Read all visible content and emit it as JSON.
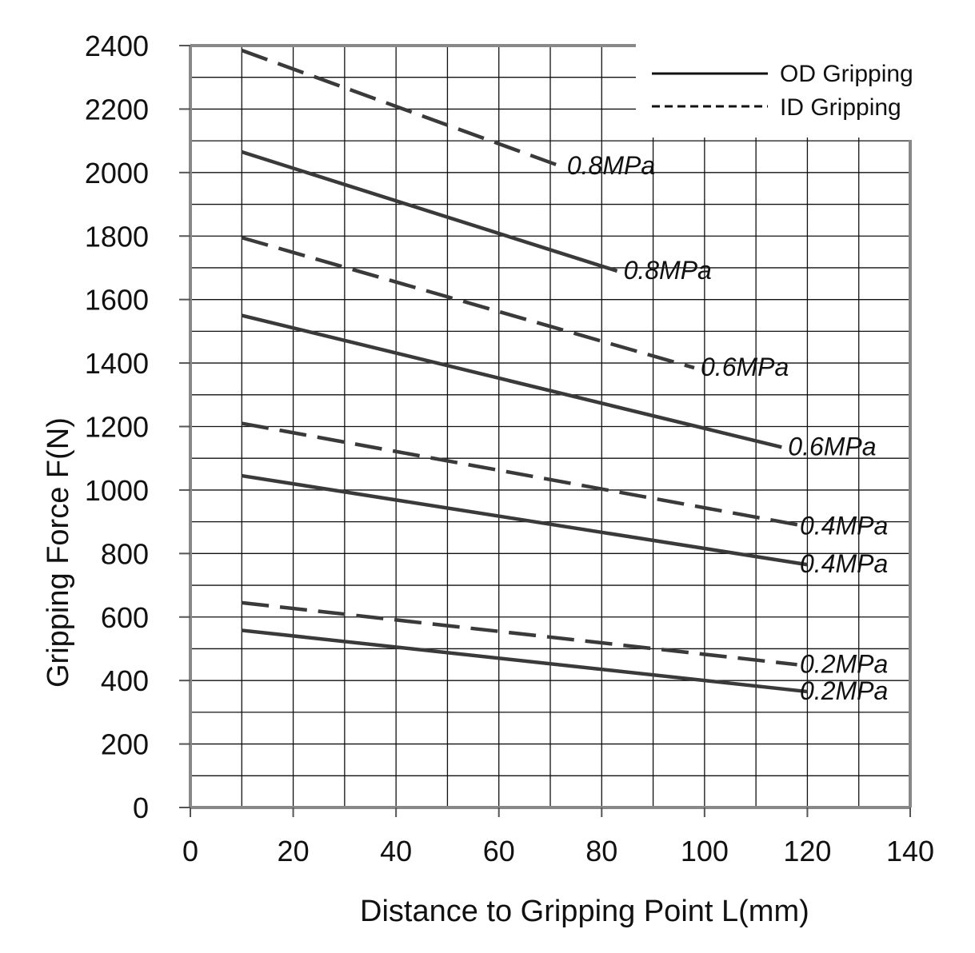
{
  "chart_data": {
    "type": "line",
    "xlabel": "Distance to Gripping Point   L(mm)",
    "ylabel": "Gripping Force   F(N)",
    "xlim": [
      0,
      140
    ],
    "ylim": [
      0,
      2400
    ],
    "x_ticks": [
      "0",
      "20",
      "40",
      "60",
      "80",
      "100",
      "120",
      "140"
    ],
    "y_ticks": [
      "0",
      "200",
      "400",
      "600",
      "800",
      "1000",
      "1200",
      "1400",
      "1600",
      "1800",
      "2000",
      "2200",
      "2400"
    ],
    "grid": true,
    "legend_position": "top-right",
    "legend": [
      {
        "name": "OD Gripping",
        "style": "solid"
      },
      {
        "name": "ID Gripping",
        "style": "dashed"
      }
    ],
    "series": [
      {
        "name": "0.8MPa",
        "group": "ID Gripping",
        "style": "dashed",
        "x": [
          10,
          72
        ],
        "y": [
          2385,
          2020
        ]
      },
      {
        "name": "0.8MPa",
        "group": "OD Gripping",
        "style": "solid",
        "x": [
          10,
          83
        ],
        "y": [
          2065,
          1690
        ]
      },
      {
        "name": "0.6MPa",
        "group": "ID Gripping",
        "style": "dashed",
        "x": [
          10,
          98
        ],
        "y": [
          1795,
          1385
        ]
      },
      {
        "name": "0.6MPa",
        "group": "OD Gripping",
        "style": "solid",
        "x": [
          10,
          115
        ],
        "y": [
          1550,
          1135
        ]
      },
      {
        "name": "0.4MPa",
        "group": "ID Gripping",
        "style": "dashed",
        "x": [
          10,
          120
        ],
        "y": [
          1210,
          885
        ]
      },
      {
        "name": "0.4MPa",
        "group": "OD Gripping",
        "style": "solid",
        "x": [
          10,
          120
        ],
        "y": [
          1045,
          765
        ]
      },
      {
        "name": "0.2MPa",
        "group": "ID Gripping",
        "style": "dashed",
        "x": [
          10,
          118
        ],
        "y": [
          645,
          450
        ]
      },
      {
        "name": "0.2MPa",
        "group": "OD Gripping",
        "style": "solid",
        "x": [
          10,
          120
        ],
        "y": [
          558,
          365
        ]
      }
    ],
    "colors": {
      "line": "#3a3a3a",
      "grid": "#111111",
      "frame": "#888888"
    }
  }
}
